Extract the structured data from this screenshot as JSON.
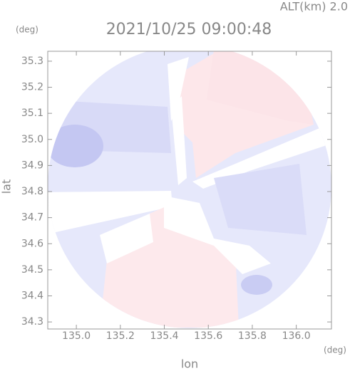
{
  "chart_data": {
    "type": "radar-map",
    "annotation": "ALT(km) 2.0",
    "title": "2021/10/25 09:00:48",
    "y_unit": "(deg)",
    "x_unit": "(deg)",
    "ylabel": "lat",
    "xlabel": "lon",
    "xlim": [
      134.87,
      136.16
    ],
    "ylim": [
      34.273,
      35.338
    ],
    "xticks": [
      {
        "value": 135.0,
        "label": "135.0"
      },
      135.2,
      135.4,
      135.6,
      135.8,
      {
        "value": 136.0,
        "label": "136.0"
      }
    ],
    "yticks": [
      35.3,
      35.2,
      35.1,
      {
        "value": 35.0,
        "label": "35.0"
      },
      34.9,
      34.8,
      34.7,
      34.6,
      34.5,
      34.4,
      34.3
    ]
  }
}
